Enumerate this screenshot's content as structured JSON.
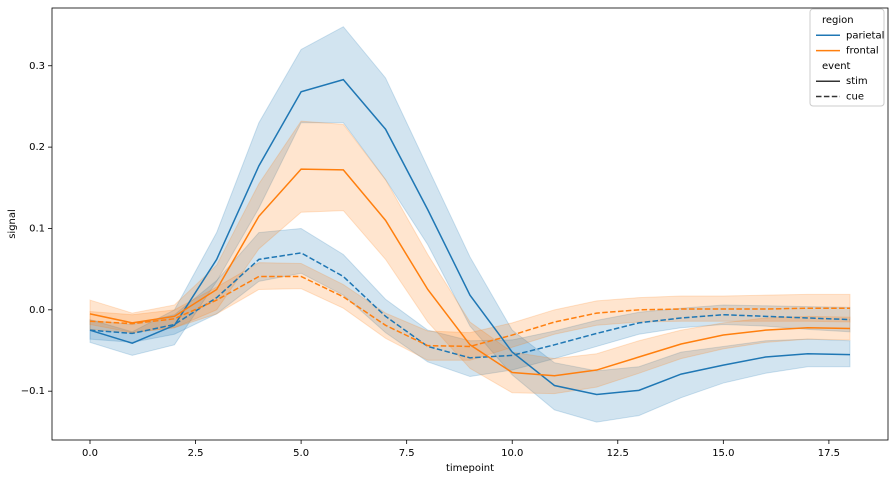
{
  "chart_data": {
    "type": "line",
    "xlabel": "timepoint",
    "ylabel": "signal",
    "x": [
      0,
      1,
      2,
      3,
      4,
      5,
      6,
      7,
      8,
      9,
      10,
      11,
      12,
      13,
      14,
      15,
      16,
      17,
      18
    ],
    "xlim": [
      -0.9,
      18.9
    ],
    "xticks": [
      {
        "value": 0,
        "label": "0.0"
      },
      2.5,
      {
        "value": 5,
        "label": "5.0"
      },
      7.5,
      {
        "value": 10,
        "label": "10.0"
      },
      12.5,
      {
        "value": 15,
        "label": "15.0"
      },
      17.5
    ],
    "ylim": [
      -0.16,
      0.371
    ],
    "yticks": [
      {
        "value": -0.1,
        "label": "−0.1"
      },
      {
        "value": 0,
        "label": "0.0"
      },
      0.1,
      0.2,
      0.3
    ],
    "band_opacity": 0.2,
    "legend": {
      "hue_title": "region",
      "style_title": "event",
      "hue": [
        {
          "name": "parietal",
          "color": "#1f77b4"
        },
        {
          "name": "frontal",
          "color": "#ff7f0e"
        }
      ],
      "style": [
        {
          "name": "stim",
          "dashed": false
        },
        {
          "name": "cue",
          "dashed": true
        }
      ]
    },
    "series": [
      {
        "hue": 0,
        "style": 0,
        "values": [
          -0.025,
          -0.041,
          -0.019,
          0.062,
          0.177,
          0.268,
          0.283,
          0.222,
          0.123,
          0.018,
          -0.052,
          -0.093,
          -0.104,
          -0.099,
          -0.079,
          -0.068,
          -0.058,
          -0.054,
          -0.055
        ],
        "ci_low": [
          -0.04,
          -0.056,
          -0.043,
          0.035,
          0.125,
          0.23,
          0.23,
          0.16,
          0.08,
          -0.02,
          -0.08,
          -0.123,
          -0.138,
          -0.13,
          -0.108,
          -0.09,
          -0.078,
          -0.07,
          -0.07
        ],
        "ci_high": [
          -0.012,
          -0.027,
          0.0,
          0.095,
          0.23,
          0.32,
          0.348,
          0.285,
          0.175,
          0.065,
          -0.025,
          -0.065,
          -0.075,
          -0.07,
          -0.052,
          -0.045,
          -0.038,
          -0.036,
          -0.038
        ]
      },
      {
        "hue": 0,
        "style": 1,
        "values": [
          -0.025,
          -0.029,
          -0.018,
          0.015,
          0.062,
          0.07,
          0.041,
          -0.008,
          -0.045,
          -0.059,
          -0.056,
          -0.043,
          -0.029,
          -0.016,
          -0.01,
          -0.006,
          -0.008,
          -0.01,
          -0.012
        ],
        "ci_low": [
          -0.036,
          -0.04,
          -0.03,
          -0.005,
          0.035,
          0.045,
          0.018,
          -0.028,
          -0.064,
          -0.082,
          -0.074,
          -0.06,
          -0.045,
          -0.03,
          -0.022,
          -0.018,
          -0.02,
          -0.024,
          -0.027
        ],
        "ci_high": [
          -0.013,
          -0.018,
          -0.006,
          0.036,
          0.095,
          0.1,
          0.068,
          0.013,
          -0.025,
          -0.038,
          -0.037,
          -0.026,
          -0.013,
          -0.003,
          0.002,
          0.006,
          0.005,
          0.004,
          0.003
        ]
      },
      {
        "hue": 1,
        "style": 0,
        "values": [
          -0.005,
          -0.016,
          -0.008,
          0.025,
          0.115,
          0.173,
          0.172,
          0.11,
          0.025,
          -0.043,
          -0.077,
          -0.081,
          -0.074,
          -0.058,
          -0.042,
          -0.031,
          -0.025,
          -0.022,
          -0.023
        ],
        "ci_low": [
          -0.018,
          -0.028,
          -0.022,
          0.0,
          0.075,
          0.12,
          0.122,
          0.062,
          -0.015,
          -0.072,
          -0.102,
          -0.103,
          -0.095,
          -0.078,
          -0.06,
          -0.048,
          -0.04,
          -0.036,
          -0.037
        ],
        "ci_high": [
          0.012,
          -0.004,
          0.006,
          0.055,
          0.155,
          0.232,
          0.228,
          0.16,
          0.068,
          -0.015,
          -0.052,
          -0.06,
          -0.054,
          -0.038,
          -0.025,
          -0.016,
          -0.01,
          -0.008,
          -0.009
        ]
      },
      {
        "hue": 1,
        "style": 1,
        "values": [
          -0.014,
          -0.017,
          -0.011,
          0.012,
          0.041,
          0.041,
          0.016,
          -0.019,
          -0.044,
          -0.045,
          -0.031,
          -0.015,
          -0.004,
          0.0,
          0.001,
          0.001,
          0.001,
          0.002,
          0.002
        ],
        "ci_low": [
          -0.024,
          -0.028,
          -0.022,
          -0.005,
          0.025,
          0.026,
          0.002,
          -0.035,
          -0.062,
          -0.062,
          -0.046,
          -0.03,
          -0.019,
          -0.015,
          -0.014,
          -0.014,
          -0.014,
          -0.014,
          -0.015
        ],
        "ci_high": [
          -0.002,
          -0.006,
          0.0,
          0.028,
          0.058,
          0.057,
          0.031,
          -0.004,
          -0.026,
          -0.028,
          -0.016,
          0.0,
          0.011,
          0.015,
          0.017,
          0.017,
          0.018,
          0.019,
          0.019
        ]
      }
    ]
  }
}
